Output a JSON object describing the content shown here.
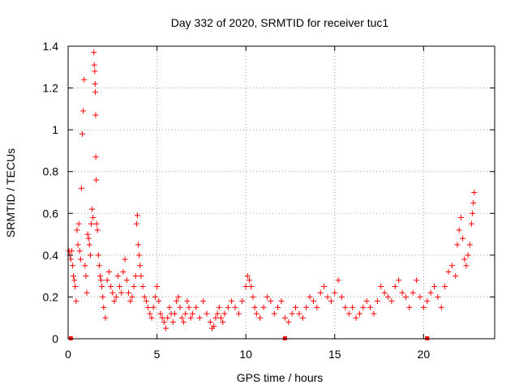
{
  "chart_data": {
    "type": "scatter",
    "title": "Day 332 of 2020, SRMTID for receiver tuc1",
    "xlabel": "GPS time / hours",
    "ylabel": "SRMTID / TECUs",
    "xlim": [
      0,
      24
    ],
    "ylim": [
      0,
      1.4
    ],
    "xticks": [
      0,
      5,
      10,
      15,
      20
    ],
    "yticks": [
      0,
      0.2,
      0.4,
      0.6,
      0.8,
      1,
      1.2,
      1.4
    ],
    "xtick_labels": [
      "0",
      "5",
      "10",
      "15",
      "20"
    ],
    "ytick_labels": [
      "0",
      "0.2",
      "0.4",
      "0.6",
      "0.8",
      "1",
      "1.2",
      "1.4"
    ],
    "grid": true,
    "marker": "+",
    "color": "#ff0000",
    "axis_markers_x": [
      0.15,
      12.2,
      20.2
    ],
    "series": [
      {
        "name": "SRMTID",
        "points": [
          [
            0.05,
            0.42
          ],
          [
            0.1,
            0.4
          ],
          [
            0.15,
            0.38
          ],
          [
            0.2,
            0.42
          ],
          [
            0.25,
            0.35
          ],
          [
            0.3,
            0.3
          ],
          [
            0.35,
            0.28
          ],
          [
            0.4,
            0.25
          ],
          [
            0.45,
            0.18
          ],
          [
            0.5,
            0.52
          ],
          [
            0.55,
            0.45
          ],
          [
            0.6,
            0.55
          ],
          [
            0.65,
            0.42
          ],
          [
            0.7,
            0.38
          ],
          [
            0.75,
            0.72
          ],
          [
            0.8,
            0.98
          ],
          [
            0.85,
            1.09
          ],
          [
            0.9,
            1.24
          ],
          [
            0.95,
            0.35
          ],
          [
            1.0,
            0.3
          ],
          [
            1.05,
            0.22
          ],
          [
            1.1,
            0.5
          ],
          [
            1.15,
            0.48
          ],
          [
            1.2,
            0.45
          ],
          [
            1.25,
            0.4
          ],
          [
            1.3,
            0.55
          ],
          [
            1.35,
            0.62
          ],
          [
            1.4,
            0.58
          ],
          [
            1.45,
            1.37
          ],
          [
            1.47,
            1.31
          ],
          [
            1.5,
            1.28
          ],
          [
            1.52,
            1.22
          ],
          [
            1.53,
            1.18
          ],
          [
            1.55,
            1.07
          ],
          [
            1.56,
            0.87
          ],
          [
            1.58,
            0.76
          ],
          [
            1.6,
            0.55
          ],
          [
            1.65,
            0.52
          ],
          [
            1.7,
            0.4
          ],
          [
            1.75,
            0.35
          ],
          [
            1.8,
            0.3
          ],
          [
            1.85,
            0.28
          ],
          [
            1.9,
            0.25
          ],
          [
            1.95,
            0.2
          ],
          [
            2.0,
            0.15
          ],
          [
            2.1,
            0.1
          ],
          [
            2.2,
            0.28
          ],
          [
            2.3,
            0.32
          ],
          [
            2.4,
            0.25
          ],
          [
            2.5,
            0.22
          ],
          [
            2.6,
            0.18
          ],
          [
            2.7,
            0.2
          ],
          [
            2.8,
            0.3
          ],
          [
            2.9,
            0.25
          ],
          [
            3.0,
            0.22
          ],
          [
            3.1,
            0.32
          ],
          [
            3.2,
            0.38
          ],
          [
            3.3,
            0.28
          ],
          [
            3.4,
            0.22
          ],
          [
            3.5,
            0.18
          ],
          [
            3.6,
            0.2
          ],
          [
            3.7,
            0.25
          ],
          [
            3.8,
            0.3
          ],
          [
            3.85,
            0.55
          ],
          [
            3.9,
            0.59
          ],
          [
            3.95,
            0.45
          ],
          [
            4.0,
            0.4
          ],
          [
            4.05,
            0.35
          ],
          [
            4.1,
            0.3
          ],
          [
            4.2,
            0.25
          ],
          [
            4.3,
            0.2
          ],
          [
            4.4,
            0.18
          ],
          [
            4.5,
            0.15
          ],
          [
            4.6,
            0.12
          ],
          [
            4.7,
            0.1
          ],
          [
            4.8,
            0.15
          ],
          [
            4.9,
            0.2
          ],
          [
            5.0,
            0.25
          ],
          [
            5.1,
            0.18
          ],
          [
            5.2,
            0.12
          ],
          [
            5.3,
            0.1
          ],
          [
            5.4,
            0.08
          ],
          [
            5.5,
            0.05
          ],
          [
            5.6,
            0.1
          ],
          [
            5.7,
            0.15
          ],
          [
            5.8,
            0.12
          ],
          [
            5.9,
            0.08
          ],
          [
            6.0,
            0.12
          ],
          [
            6.1,
            0.18
          ],
          [
            6.2,
            0.2
          ],
          [
            6.3,
            0.15
          ],
          [
            6.4,
            0.1
          ],
          [
            6.5,
            0.08
          ],
          [
            6.6,
            0.12
          ],
          [
            6.7,
            0.18
          ],
          [
            6.8,
            0.15
          ],
          [
            6.9,
            0.1
          ],
          [
            7.0,
            0.12
          ],
          [
            7.2,
            0.15
          ],
          [
            7.4,
            0.1
          ],
          [
            7.6,
            0.18
          ],
          [
            7.8,
            0.12
          ],
          [
            8.0,
            0.08
          ],
          [
            8.1,
            0.05
          ],
          [
            8.2,
            0.06
          ],
          [
            8.3,
            0.1
          ],
          [
            8.4,
            0.12
          ],
          [
            8.5,
            0.15
          ],
          [
            8.6,
            0.1
          ],
          [
            8.7,
            0.08
          ],
          [
            8.8,
            0.12
          ],
          [
            9.0,
            0.15
          ],
          [
            9.2,
            0.18
          ],
          [
            9.4,
            0.15
          ],
          [
            9.6,
            0.12
          ],
          [
            9.8,
            0.18
          ],
          [
            10.0,
            0.25
          ],
          [
            10.1,
            0.3
          ],
          [
            10.2,
            0.28
          ],
          [
            10.3,
            0.25
          ],
          [
            10.4,
            0.2
          ],
          [
            10.5,
            0.15
          ],
          [
            10.6,
            0.12
          ],
          [
            10.8,
            0.1
          ],
          [
            11.0,
            0.15
          ],
          [
            11.2,
            0.2
          ],
          [
            11.4,
            0.18
          ],
          [
            11.6,
            0.12
          ],
          [
            11.8,
            0.15
          ],
          [
            12.0,
            0.18
          ],
          [
            12.2,
            0.1
          ],
          [
            12.4,
            0.08
          ],
          [
            12.6,
            0.12
          ],
          [
            12.8,
            0.15
          ],
          [
            13.0,
            0.12
          ],
          [
            13.2,
            0.1
          ],
          [
            13.4,
            0.15
          ],
          [
            13.6,
            0.2
          ],
          [
            13.8,
            0.18
          ],
          [
            14.0,
            0.15
          ],
          [
            14.2,
            0.22
          ],
          [
            14.4,
            0.25
          ],
          [
            14.6,
            0.2
          ],
          [
            14.8,
            0.18
          ],
          [
            15.0,
            0.22
          ],
          [
            15.2,
            0.28
          ],
          [
            15.4,
            0.2
          ],
          [
            15.6,
            0.15
          ],
          [
            15.8,
            0.12
          ],
          [
            16.0,
            0.15
          ],
          [
            16.2,
            0.1
          ],
          [
            16.4,
            0.12
          ],
          [
            16.6,
            0.15
          ],
          [
            16.8,
            0.18
          ],
          [
            17.0,
            0.15
          ],
          [
            17.2,
            0.12
          ],
          [
            17.4,
            0.18
          ],
          [
            17.6,
            0.25
          ],
          [
            17.8,
            0.22
          ],
          [
            18.0,
            0.2
          ],
          [
            18.2,
            0.18
          ],
          [
            18.4,
            0.25
          ],
          [
            18.6,
            0.28
          ],
          [
            18.8,
            0.22
          ],
          [
            19.0,
            0.2
          ],
          [
            19.2,
            0.15
          ],
          [
            19.4,
            0.22
          ],
          [
            19.6,
            0.28
          ],
          [
            19.8,
            0.2
          ],
          [
            20.0,
            0.15
          ],
          [
            20.2,
            0.18
          ],
          [
            20.4,
            0.22
          ],
          [
            20.6,
            0.25
          ],
          [
            20.8,
            0.2
          ],
          [
            21.0,
            0.15
          ],
          [
            21.2,
            0.25
          ],
          [
            21.4,
            0.32
          ],
          [
            21.6,
            0.35
          ],
          [
            21.8,
            0.3
          ],
          [
            21.9,
            0.45
          ],
          [
            22.0,
            0.52
          ],
          [
            22.1,
            0.58
          ],
          [
            22.2,
            0.48
          ],
          [
            22.3,
            0.38
          ],
          [
            22.4,
            0.35
          ],
          [
            22.5,
            0.4
          ],
          [
            22.6,
            0.45
          ],
          [
            22.7,
            0.55
          ],
          [
            22.75,
            0.6
          ],
          [
            22.8,
            0.65
          ],
          [
            22.85,
            0.7
          ]
        ]
      }
    ]
  }
}
